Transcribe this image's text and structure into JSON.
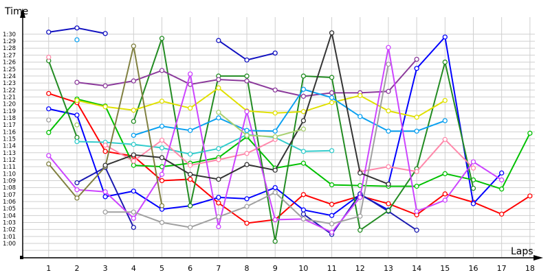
{
  "chart_data": {
    "type": "line",
    "title": "",
    "xlabel": "Laps",
    "ylabel": "Time",
    "x": [
      1,
      2,
      3,
      4,
      5,
      6,
      7,
      8,
      9,
      10,
      11,
      12,
      13,
      14,
      15,
      16,
      17,
      18
    ],
    "y_ticks": [
      "1:00",
      "1:01",
      "1:02",
      "1:03",
      "1:04",
      "1:05",
      "1:06",
      "1:07",
      "1:08",
      "1:09",
      "1:10",
      "1:11",
      "1:12",
      "1:13",
      "1:14",
      "1:15",
      "1:16",
      "1:17",
      "1:18",
      "1:19",
      "1:20",
      "1:21",
      "1:22",
      "1:23",
      "1:24",
      "1:25",
      "1:26",
      "1:27",
      "1:28",
      "1:29",
      "1:30"
    ],
    "ylim_seconds": [
      59,
      92
    ],
    "grid": true,
    "legend": "none",
    "value_unit": "seconds (lap time, 60 = 1:00)",
    "series": [
      {
        "name": "red",
        "color": "#ff0000",
        "values": [
          81.5,
          80.2,
          73.2,
          72.5,
          69.0,
          69.2,
          65.8,
          62.9,
          63.4,
          67.0,
          65.6,
          66.8,
          65.7,
          64.1,
          67.1,
          65.9,
          64.2,
          66.8
        ]
      },
      {
        "name": "blue-top",
        "color": "#1010c0",
        "values": [
          90.3,
          90.9,
          90.1,
          null,
          null,
          null,
          89.1,
          86.3,
          87.3,
          null,
          null,
          null,
          null,
          null,
          null,
          null,
          null,
          null
        ]
      },
      {
        "name": "blue-mid",
        "color": "#0000ff",
        "values": [
          79.3,
          78.4,
          66.7,
          67.5,
          64.9,
          65.4,
          66.6,
          66.4,
          68.0,
          64.8,
          64.0,
          67.0,
          64.8,
          null,
          null,
          null,
          null,
          null
        ]
      },
      {
        "name": "blue-right",
        "color": "#0000ff",
        "values": [
          null,
          null,
          null,
          null,
          null,
          null,
          null,
          null,
          null,
          null,
          null,
          null,
          68.5,
          85.1,
          89.6,
          65.7,
          70.1,
          null
        ]
      },
      {
        "name": "navy",
        "color": "#1a1ab0",
        "values": [
          null,
          68.7,
          70.9,
          62.3,
          null,
          null,
          null,
          null,
          null,
          64.2,
          61.3,
          67.1,
          64.6,
          61.9,
          null,
          null,
          null,
          null
        ]
      },
      {
        "name": "green",
        "color": "#00c000",
        "values": [
          75.9,
          80.7,
          79.7,
          71.2,
          71.0,
          71.5,
          72.3,
          75.3,
          70.8,
          71.5,
          68.4,
          68.3,
          68.2,
          68.2,
          70.0,
          69.1,
          67.8,
          75.8
        ]
      },
      {
        "name": "dark-green",
        "color": "#228b22",
        "values": [
          86.2,
          75.2,
          null,
          77.5,
          89.4,
          65.4,
          84.0,
          84.0,
          60.3,
          84.0,
          83.8,
          61.9,
          64.7,
          70.7,
          86.0,
          67.9,
          null,
          null
        ]
      },
      {
        "name": "purple",
        "color": "#8b3a9b",
        "values": [
          null,
          83.1,
          82.6,
          83.3,
          84.8,
          82.8,
          83.5,
          83.3,
          82.0,
          81.1,
          81.6,
          81.6,
          81.8,
          86.4,
          null,
          null,
          null,
          null
        ]
      },
      {
        "name": "yellow",
        "color": "#e0e000",
        "values": [
          null,
          80.5,
          79.6,
          79.1,
          80.4,
          79.4,
          82.3,
          79.0,
          78.7,
          78.9,
          80.2,
          81.2,
          79.0,
          78.1,
          80.5,
          null,
          null,
          null
        ]
      },
      {
        "name": "sky-blue",
        "color": "#0aa0f0",
        "values": [
          null,
          89.2,
          null,
          75.5,
          76.8,
          76.2,
          78.0,
          76.2,
          76.1,
          82.1,
          80.9,
          78.2,
          76.1,
          76.1,
          77.6,
          null,
          null,
          null
        ]
      },
      {
        "name": "cyan",
        "color": "#33cccc",
        "values": [
          null,
          74.6,
          74.5,
          74.2,
          73.7,
          72.8,
          73.6,
          75.6,
          75.2,
          73.2,
          73.3,
          null,
          null,
          null,
          null,
          null,
          null,
          null
        ]
      },
      {
        "name": "pink",
        "color": "#ff88aa",
        "values": [
          86.7,
          null,
          74.1,
          71.8,
          74.8,
          71.2,
          72.0,
          72.9,
          74.9,
          null,
          null,
          70.3,
          71.0,
          70.3,
          74.9,
          70.8,
          null,
          null
        ]
      },
      {
        "name": "magenta",
        "color": "#cc44ff",
        "values": [
          72.6,
          67.7,
          67.4,
          63.6,
          69.9,
          84.3,
          62.4,
          78.9,
          63.4,
          63.5,
          61.6,
          66.6,
          88.1,
          64.6,
          66.2,
          71.7,
          69.1,
          null
        ]
      },
      {
        "name": "olive",
        "color": "#808040",
        "values": [
          71.4,
          66.5,
          71.0,
          88.3,
          65.4,
          null,
          null,
          null,
          null,
          null,
          null,
          null,
          null,
          null,
          null,
          null,
          null,
          null
        ]
      },
      {
        "name": "gray",
        "color": "#a0a0a0",
        "values": [
          77.7,
          null,
          64.5,
          64.5,
          63.0,
          62.3,
          63.8,
          65.3,
          67.3,
          63.5,
          62.8,
          63.9,
          85.7,
          null,
          null,
          null,
          null,
          null
        ]
      },
      {
        "name": "dark-gray",
        "color": "#333333",
        "values": [
          null,
          null,
          71.2,
          72.7,
          72.3,
          69.9,
          69.2,
          71.3,
          70.5,
          77.6,
          90.2,
          70.1,
          68.5,
          null,
          null,
          null,
          null,
          null
        ]
      },
      {
        "name": "light-green",
        "color": "#a8d070",
        "values": [
          null,
          77.0,
          null,
          null,
          null,
          null,
          78.8,
          75.5,
          75.3,
          76.4,
          null,
          null,
          null,
          null,
          null,
          null,
          null,
          null
        ]
      }
    ]
  },
  "axes": {
    "y_title": "Time",
    "x_title": "Laps"
  }
}
